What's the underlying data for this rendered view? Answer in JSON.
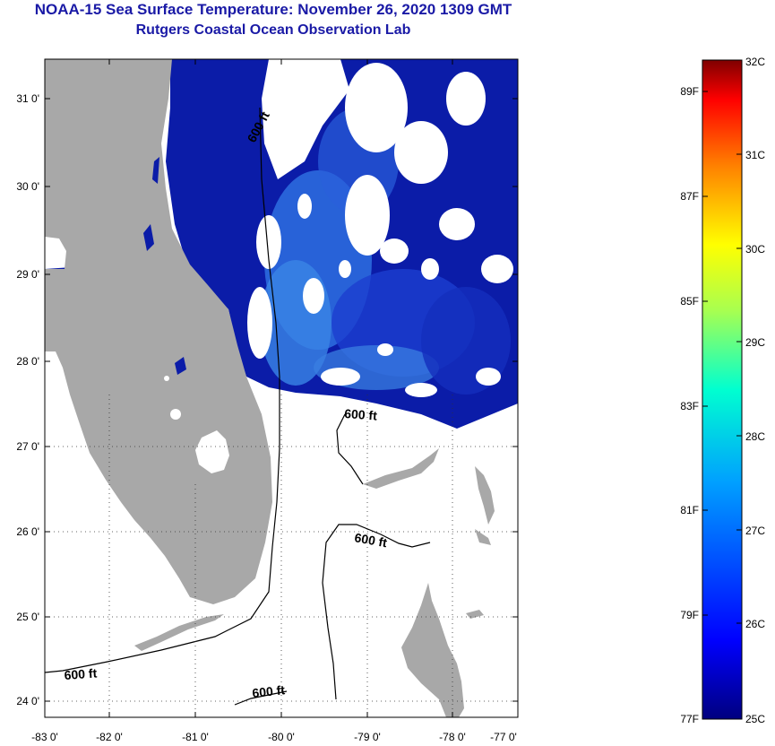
{
  "title": "NOAA-15 Sea Surface Temperature:  November 26, 2020 1309 GMT",
  "subtitle": "Rutgers Coastal Ocean Observation Lab",
  "lat_labels": [
    "31 0'",
    "30 0'",
    "29 0'",
    "28 0'",
    "27 0'",
    "26 0'",
    "25 0'",
    "24 0'"
  ],
  "lon_labels": [
    "-83 0'",
    "-82 0'",
    "-81 0'",
    "-80 0'",
    "-79 0'",
    "-78 0'",
    "-77 0'"
  ],
  "contour_labels": [
    "600 ft",
    "600 ft",
    "600 ft",
    "600 ft",
    "600 ft"
  ],
  "colorbar": {
    "celsius_labels": [
      "32C",
      "31C",
      "30C",
      "29C",
      "28C",
      "27C",
      "26C",
      "25C"
    ],
    "fahrenheit_labels": [
      "89F",
      "87F",
      "85F",
      "83F",
      "81F",
      "79F",
      "77F"
    ],
    "colors": [
      "#00007f",
      "#0000ff",
      "#007fff",
      "#00ffff",
      "#7fff7f",
      "#ffff00",
      "#ff7f00",
      "#ff0000",
      "#7f0000"
    ]
  },
  "colors": {
    "land": "#a8a8a8",
    "ocean_dark": "#0a1aa8",
    "ocean_mid": "#1f45d8",
    "ocean_light": "#3a86e6",
    "cloud": "#ffffff",
    "title": "#1a1aa6"
  }
}
